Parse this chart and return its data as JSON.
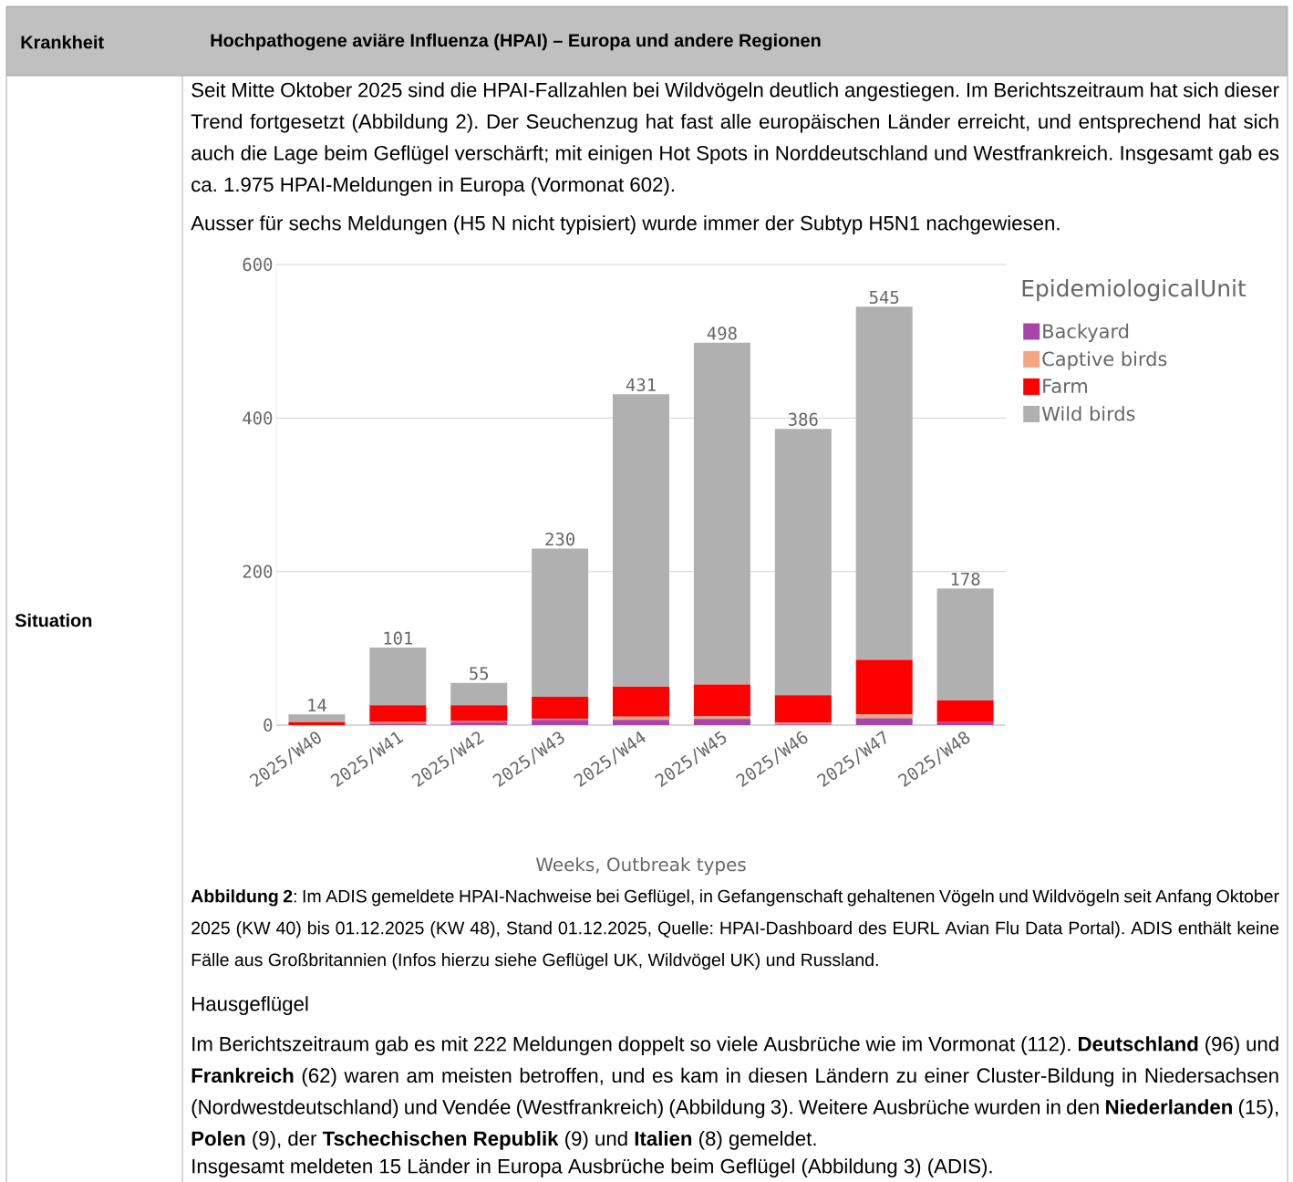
{
  "chart_data": {
    "type": "bar",
    "stacked": true,
    "title": "Hochpathogene aviäre Influenza (HPAI) – Europa und andere Regionen",
    "xlabel": "Weeks, Outbreak types",
    "legend_title": "EpidemiologicalUnit",
    "categories": [
      "2025/W40",
      "2025/W41",
      "2025/W42",
      "2025/W43",
      "2025/W44",
      "2025/W45",
      "2025/W46",
      "2025/W47",
      "2025/W48"
    ],
    "series": [
      {
        "name": "Backyard",
        "color": "#a845a8",
        "values": [
          0,
          2,
          4,
          7,
          7,
          8,
          1,
          9,
          4
        ]
      },
      {
        "name": "Captive birds",
        "color": "#f4a582",
        "values": [
          0,
          2,
          1,
          1,
          4,
          4,
          2,
          5,
          0
        ]
      },
      {
        "name": "Farm",
        "color": "#ff0000",
        "values": [
          4,
          22,
          21,
          29,
          39,
          41,
          36,
          71,
          28
        ]
      },
      {
        "name": "Wild birds",
        "color": "#b0b0b0",
        "values": [
          10,
          75,
          29,
          193,
          381,
          445,
          347,
          460,
          146
        ]
      }
    ],
    "totals": [
      "14",
      "101",
      "55",
      "230",
      "431",
      "498",
      "386",
      "545",
      "178"
    ],
    "ylim": [
      0,
      600
    ],
    "yticks": [
      0,
      200,
      400,
      600
    ],
    "grid": "y",
    "legend": "top right",
    "annotations": [
      "Krankheit",
      "Situation",
      "Seit Mitte Oktober 2025 sind die HPAI-Fallzahlen bei Wildvögeln deutlich angestiegen. Im Berichtszeitraum hat sich dieser Trend fortgesetzt (Abbildung 2). Der Seuchenzug hat fast alle europäischen Länder erreicht, und entsprechend hat sich auch die Lage beim Geflügel verschärft; mit einigen Hot Spots in Norddeutschland und Westfrankreich. Insgesamt gab es ca. 1.975 HPAI-Meldungen in Europa (Vormonat 602).",
      "Ausser für sechs Meldungen (H5 N nicht typisiert) wurde immer der Subtyp H5N1 nachgewiesen.",
      "**Abbildung 2**: Im ADIS gemeldete HPAI-Nachweise bei Geflügel, in Gefangenschaft gehaltenen Vögeln und Wildvögeln seit Anfang Oktober 2025 (KW 40) bis 01.12.2025 (KW 48), Stand 01.12.2025, Quelle: HPAI-Dashboard des EURL Avian Flu Data Portal). ADIS enthält keine Fälle aus Großbritannien (Infos hierzu siehe Geflügel UK, Wildvögel UK) und Russland.",
      "Hausgeflügel",
      "Im Berichtszeitraum gab es mit 222 Meldungen doppelt so viele Ausbrüche wie im Vormonat (112). **Deutschland** (96) und **Frankreich** (62) waren am meisten betroffen, und es kam in diesen Ländern zu einer Cluster-Bildung in Niedersachsen (Nordwestdeutschland) und Vendée (Westfrankreich) (Abbildung 3). Weitere Ausbrüche wurden in den **Niederlanden** (15), **Polen** (9), der **Tschechischen Republik** (9) und **Italien** (8) gemeldet.",
      "Insgesamt meldeten 15 Länder in Europa Ausbrüche beim Geflügel (Abbildung 3) (ADIS)."
    ]
  }
}
